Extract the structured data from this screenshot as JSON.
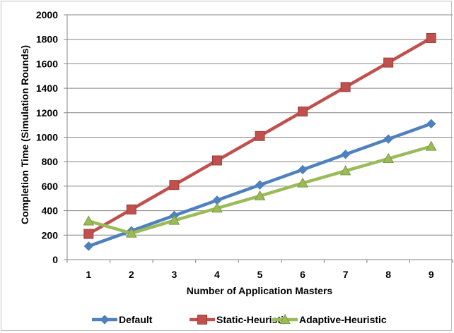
{
  "chart_data": {
    "type": "line",
    "title": "",
    "xlabel": "Number of Application Masters",
    "ylabel": "Completion Time (Simulation Rounds)",
    "x": [
      1,
      2,
      3,
      4,
      5,
      6,
      7,
      8,
      9
    ],
    "ylim": [
      0,
      2000
    ],
    "yticks": [
      0,
      200,
      400,
      600,
      800,
      1000,
      1200,
      1400,
      1600,
      1800,
      2000
    ],
    "grid": true,
    "legend_position": "bottom",
    "series": [
      {
        "name": "Default",
        "color": "#4f81bd",
        "marker": "diamond",
        "values": [
          110,
          235,
          360,
          485,
          610,
          735,
          860,
          985,
          1110
        ]
      },
      {
        "name": "Static-Heuristic",
        "color": "#c0504d",
        "marker": "square",
        "values": [
          210,
          410,
          610,
          810,
          1010,
          1210,
          1410,
          1610,
          1810
        ]
      },
      {
        "name": "Adaptive-Heuristic",
        "color": "#9bbb59",
        "marker": "triangle",
        "values": [
          315,
          215,
          320,
          420,
          520,
          625,
          725,
          825,
          925
        ]
      }
    ]
  }
}
